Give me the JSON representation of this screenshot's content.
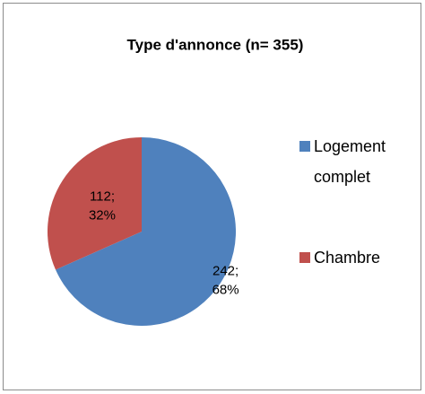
{
  "chart_data": {
    "type": "pie",
    "title": "Type d'annonce (n= 355)",
    "categories": [
      "Logement complet",
      "Chambre"
    ],
    "values": [
      242,
      112
    ],
    "value_labels": [
      [
        "242;",
        "68%"
      ],
      [
        "112;",
        "32%"
      ]
    ],
    "colors": [
      "#4f81bd",
      "#c0504d"
    ],
    "legend": "right"
  }
}
